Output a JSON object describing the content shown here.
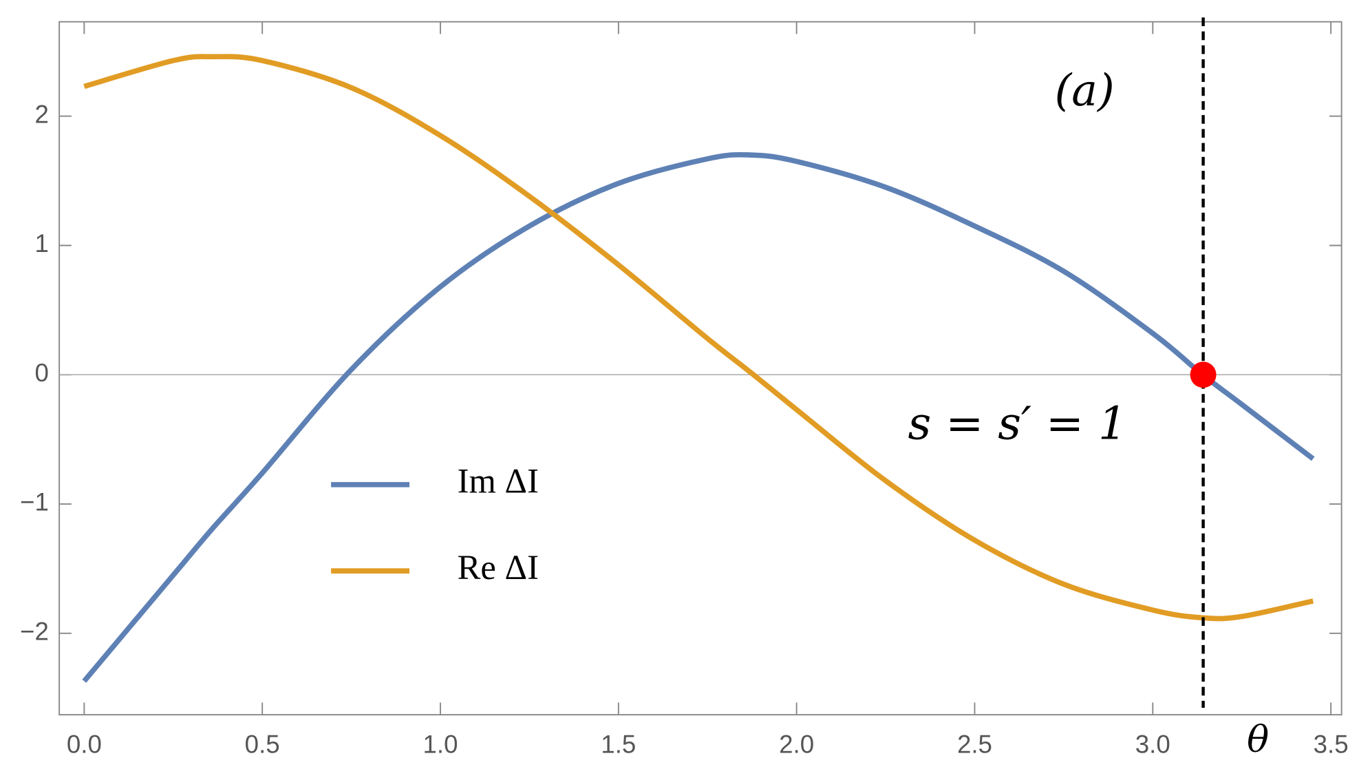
{
  "chart_data": {
    "type": "line",
    "x_label": "θ",
    "annotations": [
      "(a)",
      "s = s′ = 1"
    ],
    "x": [
      0,
      0.25,
      0.36,
      0.5,
      0.75,
      1,
      1.25,
      1.5,
      1.75,
      1.87,
      2,
      2.25,
      2.5,
      2.75,
      3,
      3.14,
      3.25,
      3.45
    ],
    "series": [
      {
        "name": "Im ΔI",
        "color": "#5e81b5",
        "values": [
          -2.37,
          -1.55,
          -1.19,
          -0.76,
          0.04,
          0.68,
          1.15,
          1.48,
          1.67,
          1.7,
          1.65,
          1.45,
          1.15,
          0.8,
          0.32,
          0.0,
          -0.23,
          -0.65
        ]
      },
      {
        "name": "Re ΔI",
        "color": "#e19c24",
        "values": [
          2.23,
          2.43,
          2.46,
          2.43,
          2.22,
          1.85,
          1.38,
          0.85,
          0.28,
          0.02,
          -0.27,
          -0.82,
          -1.28,
          -1.62,
          -1.82,
          -1.88,
          -1.87,
          -1.75
        ]
      }
    ],
    "vline": {
      "x": 3.1416,
      "color": "#000000",
      "dashed": true
    },
    "marker": {
      "x": 3.1416,
      "y": 0,
      "color": "#ff0000"
    },
    "zero_line": true,
    "legend_position": "center left",
    "xlim": [
      -0.07,
      3.53
    ],
    "ylim": [
      -2.63,
      2.73
    ],
    "xticks": [
      {
        "value": 0,
        "label": "0.0"
      },
      0.5,
      {
        "value": 1,
        "label": "1.0"
      },
      1.5,
      {
        "value": 2,
        "label": "2.0"
      },
      2.5,
      {
        "value": 3,
        "label": "3.0"
      },
      3.5
    ],
    "yticks": [
      {
        "value": -2,
        "label": "−2"
      },
      {
        "value": -1,
        "label": "−1"
      },
      0,
      1,
      2
    ]
  }
}
